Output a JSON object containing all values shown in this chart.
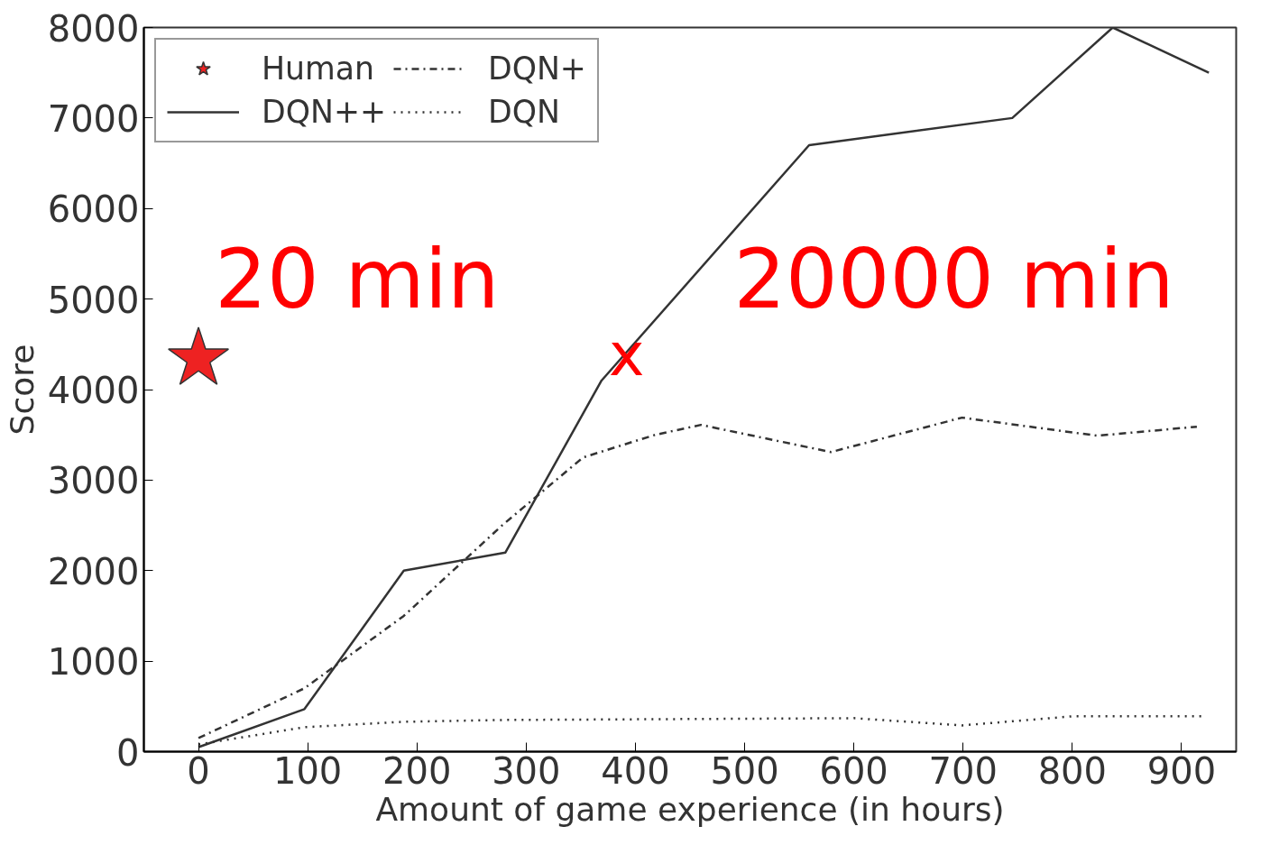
{
  "chart_data": {
    "type": "line",
    "xlabel": "Amount of game experience (in hours)",
    "ylabel": "Score",
    "xlim": [
      -50,
      950
    ],
    "ylim": [
      0,
      8000
    ],
    "xticks": [
      0,
      100,
      200,
      300,
      400,
      500,
      600,
      700,
      800,
      900
    ],
    "yticks": [
      0,
      1000,
      2000,
      3000,
      4000,
      5000,
      6000,
      7000,
      8000
    ],
    "grid": false,
    "legend": "top left",
    "series": [
      {
        "name": "Human",
        "type": "scatter",
        "marker": "star",
        "color": "#ee2222",
        "x": [
          0
        ],
        "values": [
          4340
        ]
      },
      {
        "name": "DQN++",
        "line_style": "solid",
        "color": "#333333",
        "x": [
          0,
          97,
          188,
          281,
          369,
          559,
          745,
          837,
          925
        ],
        "values": [
          50,
          470,
          2000,
          2200,
          4100,
          6700,
          7000,
          8000,
          7500
        ]
      },
      {
        "name": "DQN+",
        "line_style": "dashdot",
        "color": "#333333",
        "x": [
          0,
          97,
          188,
          278,
          352,
          418,
          460,
          579,
          699,
          823,
          914
        ],
        "values": [
          150,
          700,
          1500,
          2500,
          3250,
          3500,
          3610,
          3310,
          3690,
          3490,
          3590
        ]
      },
      {
        "name": "DQN",
        "line_style": "dotted",
        "color": "#333333",
        "x": [
          0,
          97,
          188,
          278,
          600,
          699,
          800,
          918
        ],
        "values": [
          80,
          270,
          330,
          350,
          370,
          290,
          390,
          390
        ]
      }
    ],
    "annotations": [
      "20 min",
      "20000 min",
      {
        "text": "x",
        "x": 392,
        "y": 4390
      }
    ]
  }
}
